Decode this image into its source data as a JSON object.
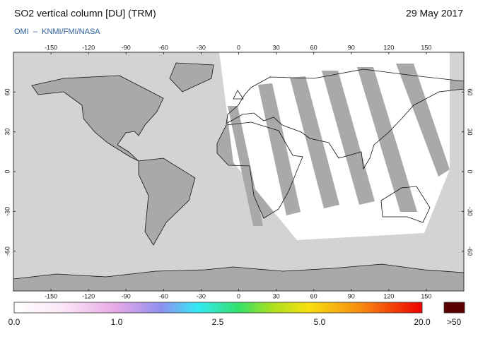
{
  "header": {
    "title": "SO2 vertical column [DU] (TRM)",
    "date": "29 May 2017",
    "source": "OMI  –  KNMI/FMI/NASA"
  },
  "map": {
    "lon_ticks": [
      -150,
      -120,
      -90,
      -60,
      -30,
      0,
      30,
      60,
      90,
      120,
      150
    ],
    "lat_ticks": [
      60,
      30,
      0,
      -30,
      -60
    ]
  },
  "colorbar": {
    "labels": [
      "0.0",
      "1.0",
      "2.5",
      "5.0",
      "20.0"
    ],
    "overflow_label": ">50"
  }
}
